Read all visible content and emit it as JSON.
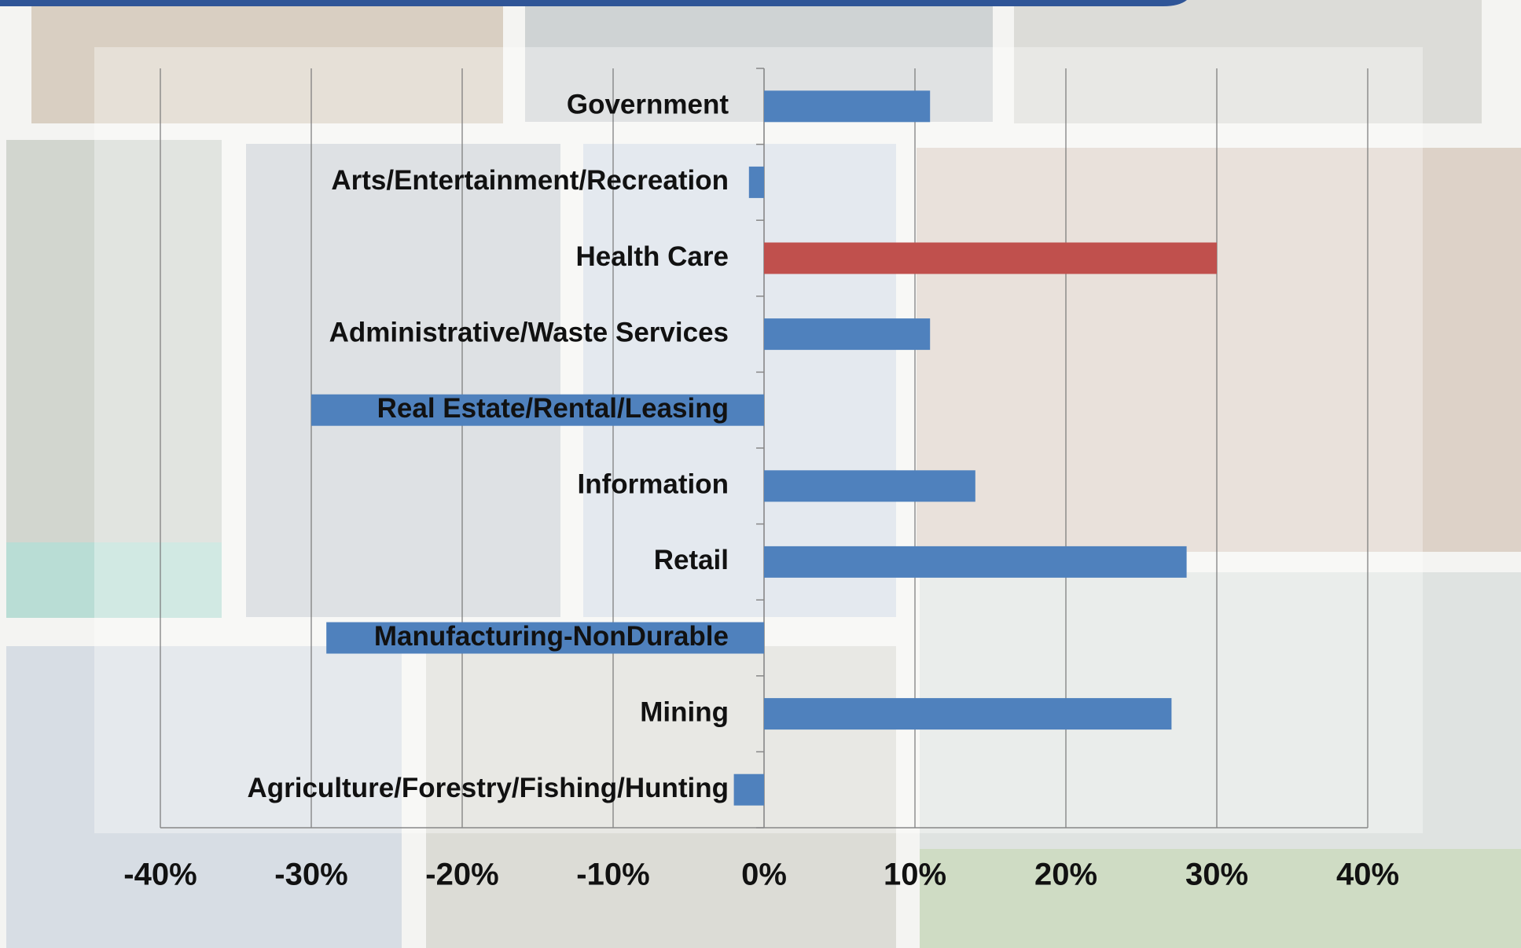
{
  "chart_data": {
    "type": "bar",
    "orientation": "horizontal",
    "categories": [
      "Government",
      "Arts/Entertainment/Recreation",
      "Health Care",
      "Administrative/Waste Services",
      "Real Estate/Rental/Leasing",
      "Information",
      "Retail",
      "Manufacturing-NonDurable",
      "Mining",
      "Agriculture/Forestry/Fishing/Hunting"
    ],
    "values": [
      11,
      -1,
      30,
      11,
      -30,
      14,
      28,
      -29,
      27,
      -2
    ],
    "colors": [
      "#4f81bd",
      "#4f81bd",
      "#c0504d",
      "#4f81bd",
      "#4f81bd",
      "#4f81bd",
      "#4f81bd",
      "#4f81bd",
      "#4f81bd",
      "#4f81bd"
    ],
    "xlim": [
      -40,
      40
    ],
    "xticks": [
      {
        "value": -40,
        "label": "-40%"
      },
      {
        "value": -30,
        "label": "-30%"
      },
      {
        "value": -20,
        "label": "-20%"
      },
      {
        "value": -10,
        "label": "-10%"
      },
      {
        "value": 0,
        "label": "0%"
      },
      {
        "value": 10,
        "label": "10%"
      },
      {
        "value": 20,
        "label": "20%"
      },
      {
        "value": 30,
        "label": "30%"
      },
      {
        "value": 40,
        "label": "40%"
      }
    ],
    "grid": true
  }
}
